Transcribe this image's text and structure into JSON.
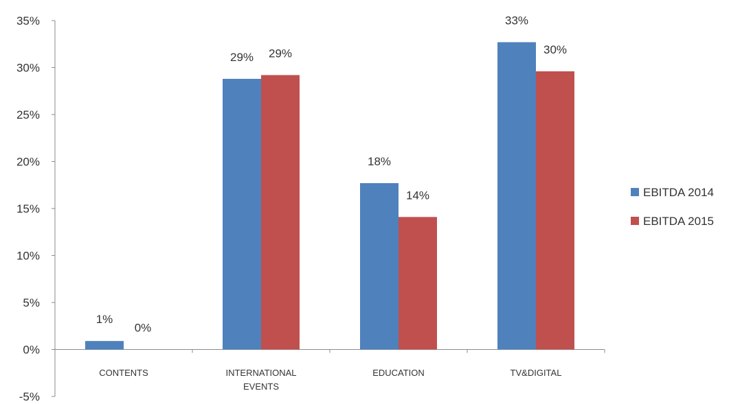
{
  "chart_data": {
    "type": "bar",
    "title": "",
    "xlabel": "",
    "ylabel": "",
    "ylim": [
      -5,
      35
    ],
    "y_ticks": [
      35,
      30,
      25,
      20,
      15,
      10,
      5,
      0,
      -5
    ],
    "y_tick_labels": [
      "35%",
      "30%",
      "25%",
      "20%",
      "15%",
      "10%",
      "5%",
      "0%",
      "-5%"
    ],
    "categories": [
      [
        "CONTENTS"
      ],
      [
        "INTERNATIONAL",
        "EVENTS"
      ],
      [
        "EDUCATION"
      ],
      [
        "TV&DIGITAL"
      ]
    ],
    "series": [
      {
        "name": "EBITDA 2014",
        "color": "#4f81bd",
        "values": [
          0.9,
          28.8,
          17.7,
          32.7
        ],
        "labels": [
          "1%",
          "29%",
          "18%",
          "33%"
        ]
      },
      {
        "name": "EBITDA 2015",
        "color": "#c0504d",
        "values": [
          0,
          29.2,
          14.1,
          29.6
        ],
        "labels": [
          "0%",
          "29%",
          "14%",
          "30%"
        ]
      }
    ],
    "legend_position": "right",
    "grid": false
  }
}
